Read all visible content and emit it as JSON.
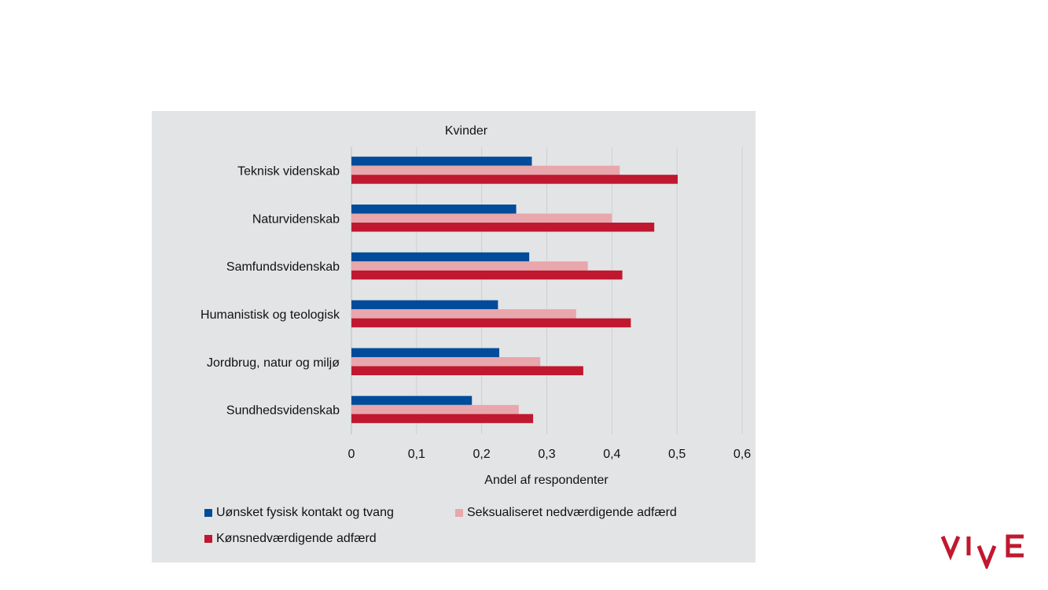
{
  "chart_data": {
    "type": "bar",
    "orientation": "horizontal",
    "title": "Kvinder",
    "xlabel": "Andel af respondenter",
    "ylabel": "",
    "xlim": [
      0,
      0.6
    ],
    "xticks": [
      0,
      0.1,
      0.2,
      0.3,
      0.4,
      0.5,
      0.6
    ],
    "xtick_labels": [
      "0",
      "0,1",
      "0,2",
      "0,3",
      "0,4",
      "0,5",
      "0,6"
    ],
    "grid": true,
    "legend_position": "bottom",
    "categories": [
      "Teknisk videnskab",
      "Naturvidenskab",
      "Samfundsvidenskab",
      "Humanistisk og teologisk",
      "Jordbrug, natur og miljø",
      "Sundhedsvidenskab"
    ],
    "series": [
      {
        "name": "Uønsket fysisk kontakt og tvang",
        "color": "#004b9a",
        "values": [
          0.277,
          0.253,
          0.273,
          0.225,
          0.227,
          0.185
        ]
      },
      {
        "name": "Seksualiseret nedværdigende adfærd",
        "color": "#e8a7ac",
        "values": [
          0.412,
          0.4,
          0.363,
          0.345,
          0.29,
          0.257
        ]
      },
      {
        "name": "Kønsnedværdigende adfærd",
        "color": "#c0182f",
        "values": [
          0.501,
          0.465,
          0.416,
          0.429,
          0.356,
          0.279
        ]
      }
    ]
  },
  "logo": {
    "text": "VIVE",
    "color": "#c0182f"
  }
}
